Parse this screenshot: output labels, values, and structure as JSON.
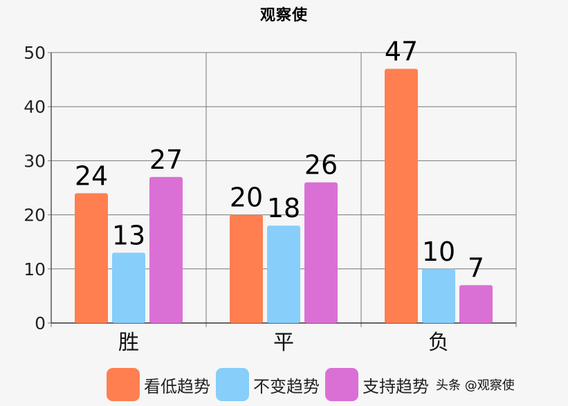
{
  "chart_data": {
    "type": "bar",
    "title": "观察使",
    "categories": [
      "胜",
      "平",
      "负"
    ],
    "series": [
      {
        "name": "看低趋势",
        "color": "#ff7f50",
        "values": [
          24,
          20,
          47
        ]
      },
      {
        "name": "不变趋势",
        "color": "#87cefa",
        "values": [
          13,
          18,
          10
        ]
      },
      {
        "name": "支持趋势",
        "color": "#da70d6",
        "values": [
          27,
          26,
          7
        ]
      }
    ],
    "xlabel": "",
    "ylabel": "",
    "ylim": [
      0,
      50
    ],
    "yticks": [
      0,
      10,
      20,
      30,
      40,
      50
    ],
    "grid": true,
    "data_labels": true,
    "legend_position": "bottom"
  },
  "watermark": "头条 @观察使"
}
